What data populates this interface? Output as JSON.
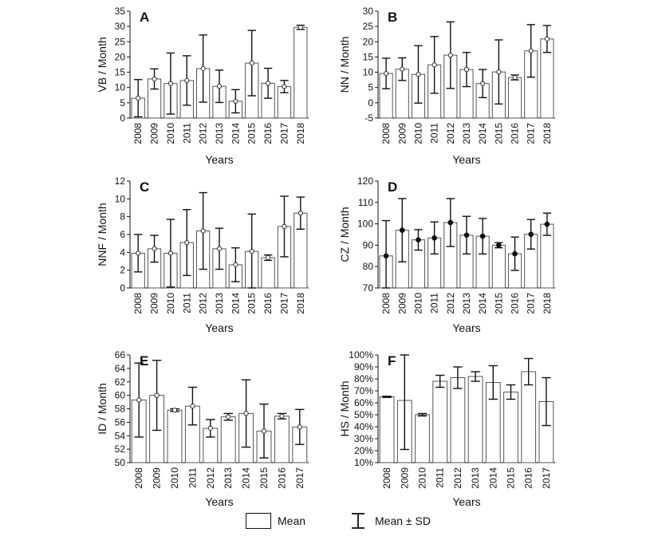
{
  "chart_data": [
    {
      "panel": "A",
      "type": "bar",
      "ylabel": "VB / Month",
      "xlabel": "Years",
      "categories": [
        "2008",
        "2009",
        "2010",
        "2011",
        "2012",
        "2013",
        "2014",
        "2015",
        "2016",
        "2017",
        "2018"
      ],
      "values": [
        6.5,
        12.8,
        11.3,
        12.3,
        16.2,
        10.4,
        5.5,
        18.0,
        11.4,
        10.3,
        29.7
      ],
      "sd": [
        6.1,
        3.3,
        10.0,
        8.1,
        11.0,
        5.3,
        3.8,
        10.7,
        4.9,
        2.0,
        0.7
      ],
      "marker": "open",
      "ylim": [
        0,
        35
      ],
      "yticks": [
        0,
        5,
        10,
        15,
        20,
        25,
        30,
        35
      ],
      "ytick_labels": [
        "0",
        "5",
        "10",
        "15",
        "20",
        "25",
        "30",
        "35"
      ],
      "grid": false
    },
    {
      "panel": "B",
      "type": "bar",
      "ylabel": "NN / Month",
      "xlabel": "Years",
      "categories": [
        "2008",
        "2009",
        "2010",
        "2011",
        "2012",
        "2013",
        "2014",
        "2015",
        "2016",
        "2017",
        "2018"
      ],
      "values": [
        9.6,
        11.0,
        9.3,
        12.4,
        15.6,
        10.9,
        6.3,
        10.1,
        8.3,
        17.0,
        20.9
      ],
      "sd": [
        5.0,
        3.7,
        9.4,
        9.3,
        10.9,
        5.6,
        4.6,
        10.5,
        0.8,
        8.6,
        4.4
      ],
      "marker": "open",
      "ylim": [
        -5,
        30
      ],
      "yticks": [
        -5,
        0,
        5,
        10,
        15,
        20,
        25,
        30
      ],
      "ytick_labels": [
        "-5",
        "0",
        "5",
        "10",
        "15",
        "20",
        "25",
        "30"
      ],
      "grid": false
    },
    {
      "panel": "C",
      "type": "bar",
      "ylabel": "NNF / Month",
      "xlabel": "Years",
      "categories": [
        "2008",
        "2009",
        "2010",
        "2011",
        "2012",
        "2013",
        "2014",
        "2015",
        "2016",
        "2017",
        "2018"
      ],
      "values": [
        3.9,
        4.4,
        3.9,
        5.1,
        6.4,
        4.4,
        2.6,
        4.1,
        3.4,
        6.9,
        8.4
      ],
      "sd": [
        2.1,
        1.5,
        3.8,
        3.7,
        4.3,
        2.3,
        1.9,
        4.2,
        0.3,
        3.4,
        1.8
      ],
      "marker": "open",
      "ylim": [
        0,
        12
      ],
      "yticks": [
        0,
        2,
        4,
        6,
        8,
        10,
        12
      ],
      "ytick_labels": [
        "0",
        "2",
        "4",
        "6",
        "8",
        "10",
        "12"
      ],
      "grid": false
    },
    {
      "panel": "D",
      "type": "bar",
      "ylabel": "CZ / Month",
      "xlabel": "Years",
      "categories": [
        "2008",
        "2009",
        "2010",
        "2011",
        "2012",
        "2013",
        "2014",
        "2015",
        "2016",
        "2017",
        "2018"
      ],
      "values": [
        85.0,
        97.0,
        92.5,
        93.4,
        100.6,
        94.7,
        94.2,
        90.0,
        86.0,
        95.1,
        99.8
      ],
      "sd": [
        16.5,
        14.8,
        4.8,
        7.5,
        11.2,
        8.8,
        8.3,
        1.2,
        7.8,
        6.9,
        5.2
      ],
      "marker": "filled",
      "ylim": [
        70,
        120
      ],
      "yticks": [
        70,
        80,
        90,
        100,
        110,
        120
      ],
      "ytick_labels": [
        "70",
        "80",
        "90",
        "100",
        "110",
        "120"
      ],
      "grid": false
    },
    {
      "panel": "E",
      "type": "bar",
      "ylabel": "ID / Month",
      "xlabel": "Years",
      "categories": [
        "2008",
        "2009",
        "2010",
        "2011",
        "2012",
        "2013",
        "2014",
        "2015",
        "2016",
        "2017"
      ],
      "values": [
        59.3,
        60.0,
        57.8,
        58.4,
        55.1,
        56.8,
        57.3,
        54.7,
        56.9,
        55.3
      ],
      "sd": [
        5.5,
        5.2,
        0.2,
        2.8,
        1.3,
        0.5,
        5.0,
        4.0,
        0.4,
        2.6
      ],
      "marker": "open",
      "ylim": [
        50,
        66
      ],
      "yticks": [
        50,
        52,
        54,
        56,
        58,
        60,
        62,
        64,
        66
      ],
      "ytick_labels": [
        "50",
        "52",
        "54",
        "56",
        "58",
        "60",
        "62",
        "64",
        "66"
      ],
      "grid": false
    },
    {
      "panel": "F",
      "type": "bar",
      "ylabel": "HS / Month",
      "xlabel": "Years",
      "categories": [
        "2008",
        "2009",
        "2010",
        "2011",
        "2012",
        "2013",
        "2014",
        "2015",
        "2016",
        "2017"
      ],
      "values": [
        65.0,
        62.0,
        50.0,
        78.0,
        81.0,
        82.0,
        77.0,
        69.0,
        86.0,
        61.0
      ],
      "sd": [
        0.5,
        41.0,
        1.0,
        5.0,
        9.0,
        4.0,
        14.0,
        6.0,
        11.0,
        20.0
      ],
      "marker": "none",
      "ylim": [
        10,
        100
      ],
      "yticks": [
        10,
        20,
        30,
        40,
        50,
        60,
        70,
        80,
        90,
        100
      ],
      "ytick_labels": [
        "10%",
        "20%",
        "30%",
        "40%",
        "50%",
        "60%",
        "70%",
        "80%",
        "90%",
        "100%"
      ],
      "grid": false
    }
  ],
  "legend": {
    "mean_label": "Mean",
    "sd_label": "Mean ± SD"
  }
}
